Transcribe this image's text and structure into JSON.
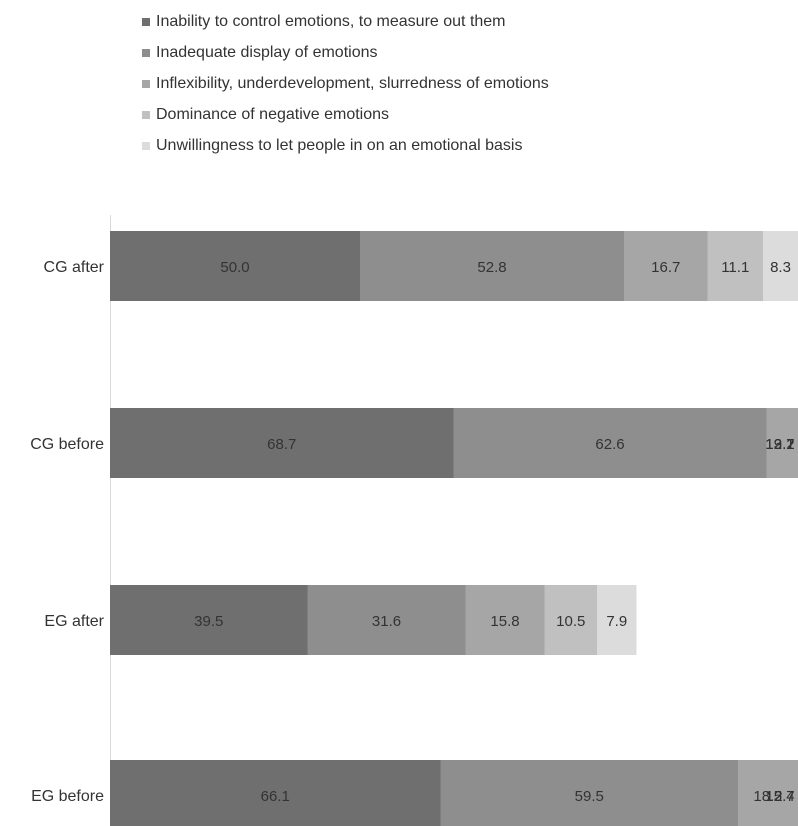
{
  "chart_data": {
    "type": "bar",
    "orientation": "horizontal",
    "stacked": true,
    "title": "",
    "xlabel": "",
    "ylabel": "",
    "grid": false,
    "legend_position": "top",
    "categories": [
      "CG after",
      "CG before",
      "EG after",
      "EG before"
    ],
    "series": [
      {
        "name": "Inability to control emotions, to measure out them",
        "color": "#6f6f6f",
        "values": [
          50.0,
          68.7,
          39.5,
          66.1
        ]
      },
      {
        "name": "Inadequate display of emotions",
        "color": "#8e8e8e",
        "values": [
          52.8,
          62.6,
          31.6,
          59.5
        ]
      },
      {
        "name": "Inflexibility, underdevelopment, slurredness of emotions",
        "color": "#a6a6a6",
        "values": [
          16.7,
          19.1,
          15.8,
          18.2
        ]
      },
      {
        "name": "Dominance of negative emotions",
        "color": "#c0c0c0",
        "values": [
          11.1,
          13.7,
          10.5,
          15.7
        ]
      },
      {
        "name": "Unwillingness to let people in on an emotional basis",
        "color": "#dcdcdc",
        "values": [
          8.3,
          12.2,
          7.9,
          12.4
        ]
      }
    ]
  }
}
